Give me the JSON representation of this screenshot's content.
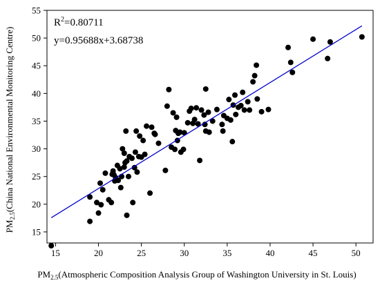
{
  "chart_data": {
    "type": "scatter",
    "title": "",
    "xlabel": {
      "prefix": "PM",
      "sub": "2.5",
      "suffix": "(Atmospheric Composition Analysis Group of Washington University in St. Louis)"
    },
    "ylabel": {
      "prefix": "PM",
      "sub": "2.5",
      "suffix": "(China National Environmental Monitoring Centre)"
    },
    "xlim": [
      14,
      52
    ],
    "ylim": [
      13,
      55
    ],
    "xticks": [
      15,
      20,
      25,
      30,
      35,
      40,
      45,
      50
    ],
    "yticks": [
      15,
      20,
      25,
      30,
      35,
      40,
      45,
      50,
      55
    ],
    "grid": false,
    "annotations": {
      "r2_base": "R",
      "r2_sup": "2",
      "r2_value": "=0.80711",
      "equation": "y=0.95688x+3.68738"
    },
    "fit_line": {
      "slope": 0.95688,
      "intercept": 3.68738,
      "x_range": [
        14.5,
        50.7
      ],
      "color": "#0000cc"
    },
    "marker_color": "#000000",
    "points": [
      [
        14.5,
        12.5
      ],
      [
        19.0,
        21.3
      ],
      [
        19.0,
        16.9
      ],
      [
        19.8,
        20.3
      ],
      [
        20.0,
        18.4
      ],
      [
        20.2,
        23.8
      ],
      [
        20.3,
        19.9
      ],
      [
        20.5,
        22.6
      ],
      [
        20.8,
        25.6
      ],
      [
        21.2,
        20.8
      ],
      [
        21.5,
        20.3
      ],
      [
        21.6,
        25.4
      ],
      [
        21.7,
        26.0
      ],
      [
        21.8,
        25.3
      ],
      [
        21.9,
        24.2
      ],
      [
        22.0,
        24.8
      ],
      [
        22.2,
        27.0
      ],
      [
        22.3,
        24.3
      ],
      [
        22.5,
        26.4
      ],
      [
        22.6,
        23.0
      ],
      [
        22.7,
        25.0
      ],
      [
        22.8,
        30.0
      ],
      [
        23.0,
        26.7
      ],
      [
        23.0,
        29.2
      ],
      [
        23.1,
        27.5
      ],
      [
        23.2,
        33.2
      ],
      [
        23.3,
        27.8
      ],
      [
        23.3,
        18.0
      ],
      [
        23.5,
        25.0
      ],
      [
        23.6,
        28.6
      ],
      [
        23.9,
        28.3
      ],
      [
        24.0,
        20.3
      ],
      [
        24.2,
        26.6
      ],
      [
        24.3,
        29.4
      ],
      [
        24.4,
        33.2
      ],
      [
        24.5,
        25.8
      ],
      [
        24.7,
        28.6
      ],
      [
        24.8,
        32.3
      ],
      [
        25.0,
        28.5
      ],
      [
        25.2,
        31.5
      ],
      [
        25.4,
        29.0
      ],
      [
        25.6,
        34.1
      ],
      [
        26.0,
        22.0
      ],
      [
        26.2,
        33.9
      ],
      [
        26.5,
        32.8
      ],
      [
        26.6,
        32.6
      ],
      [
        27.0,
        31.0
      ],
      [
        27.8,
        26.1
      ],
      [
        28.0,
        37.7
      ],
      [
        28.2,
        40.7
      ],
      [
        28.5,
        30.3
      ],
      [
        28.7,
        36.5
      ],
      [
        28.9,
        29.9
      ],
      [
        29.0,
        33.3
      ],
      [
        29.1,
        35.7
      ],
      [
        29.2,
        31.5
      ],
      [
        29.3,
        32.8
      ],
      [
        29.5,
        33.0
      ],
      [
        29.6,
        29.4
      ],
      [
        29.9,
        29.9
      ],
      [
        30.0,
        32.9
      ],
      [
        30.4,
        34.7
      ],
      [
        30.6,
        36.8
      ],
      [
        30.8,
        37.3
      ],
      [
        31.0,
        34.6
      ],
      [
        31.2,
        35.3
      ],
      [
        31.4,
        37.4
      ],
      [
        31.6,
        34.5
      ],
      [
        31.8,
        27.9
      ],
      [
        32.0,
        37.0
      ],
      [
        32.3,
        36.1
      ],
      [
        32.4,
        34.4
      ],
      [
        32.5,
        40.8
      ],
      [
        32.5,
        33.2
      ],
      [
        32.8,
        36.6
      ],
      [
        32.9,
        33.0
      ],
      [
        33.3,
        35.0
      ],
      [
        33.8,
        37.1
      ],
      [
        34.4,
        34.4
      ],
      [
        34.5,
        33.2
      ],
      [
        34.6,
        36.0
      ],
      [
        35.0,
        35.5
      ],
      [
        35.2,
        38.9
      ],
      [
        35.4,
        35.2
      ],
      [
        35.6,
        31.3
      ],
      [
        35.7,
        37.9
      ],
      [
        35.9,
        39.7
      ],
      [
        36.0,
        36.2
      ],
      [
        36.3,
        37.5
      ],
      [
        36.6,
        37.8
      ],
      [
        36.8,
        40.2
      ],
      [
        37.0,
        37.0
      ],
      [
        37.4,
        38.5
      ],
      [
        37.6,
        37.0
      ],
      [
        38.0,
        42.1
      ],
      [
        38.2,
        43.2
      ],
      [
        38.4,
        45.1
      ],
      [
        38.5,
        39.0
      ],
      [
        39.0,
        36.7
      ],
      [
        39.8,
        37.1
      ],
      [
        42.1,
        48.3
      ],
      [
        42.4,
        45.6
      ],
      [
        42.6,
        43.8
      ],
      [
        45.0,
        49.8
      ],
      [
        46.7,
        46.3
      ],
      [
        47.0,
        49.3
      ],
      [
        50.7,
        50.2
      ]
    ]
  }
}
